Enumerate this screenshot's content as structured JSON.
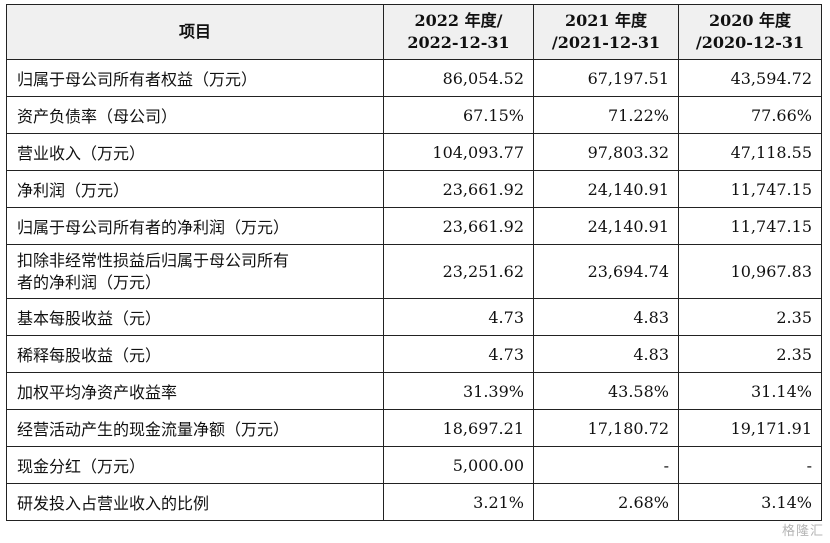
{
  "table": {
    "headers": {
      "item": "项目",
      "col1_line1": "2022 年度/",
      "col1_line2": "2022-12-31",
      "col2_line1": "2021 年度",
      "col2_line2": "/2021-12-31",
      "col3_line1": "2020 年度",
      "col3_line2": "/2020-12-31"
    },
    "rows": [
      {
        "label": "归属于母公司所有者权益（万元）",
        "v2022": "86,054.52",
        "v2021": "67,197.51",
        "v2020": "43,594.72"
      },
      {
        "label": "资产负债率（母公司）",
        "v2022": "67.15%",
        "v2021": "71.22%",
        "v2020": "77.66%"
      },
      {
        "label": "营业收入（万元）",
        "v2022": "104,093.77",
        "v2021": "97,803.32",
        "v2020": "47,118.55"
      },
      {
        "label": "净利润（万元）",
        "v2022": "23,661.92",
        "v2021": "24,140.91",
        "v2020": "11,747.15"
      },
      {
        "label": "归属于母公司所有者的净利润（万元）",
        "v2022": "23,661.92",
        "v2021": "24,140.91",
        "v2020": "11,747.15"
      },
      {
        "label_line1": "扣除非经常性损益后归属于母公司所有",
        "label_line2": "者的净利润（万元）",
        "v2022": "23,251.62",
        "v2021": "23,694.74",
        "v2020": "10,967.83"
      },
      {
        "label": "基本每股收益（元）",
        "v2022": "4.73",
        "v2021": "4.83",
        "v2020": "2.35"
      },
      {
        "label": "稀释每股收益（元）",
        "v2022": "4.73",
        "v2021": "4.83",
        "v2020": "2.35"
      },
      {
        "label": "加权平均净资产收益率",
        "v2022": "31.39%",
        "v2021": "43.58%",
        "v2020": "31.14%"
      },
      {
        "label": "经营活动产生的现金流量净额（万元）",
        "v2022": "18,697.21",
        "v2021": "17,180.72",
        "v2020": "19,171.91"
      },
      {
        "label": "现金分红（万元）",
        "v2022": "5,000.00",
        "v2021": "-",
        "v2020": "-"
      },
      {
        "label": "研发投入占营业收入的比例",
        "v2022": "3.21%",
        "v2021": "2.68%",
        "v2020": "3.14%"
      }
    ]
  },
  "watermark": "格隆汇"
}
